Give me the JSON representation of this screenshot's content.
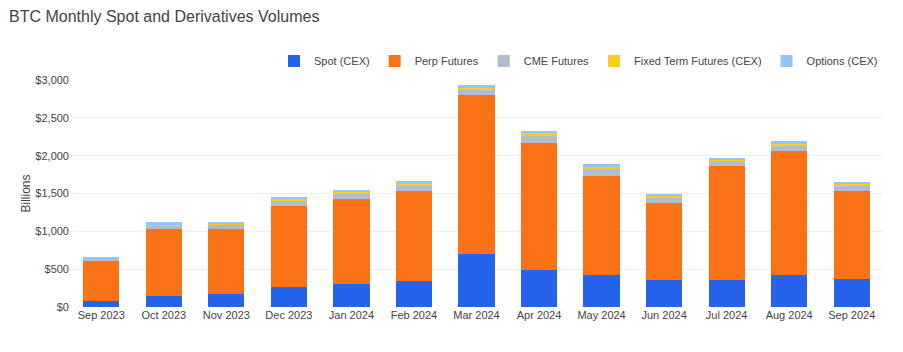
{
  "chart_data": {
    "type": "bar",
    "stacked": true,
    "title": "BTC Monthly Spot and Derivatives Volumes",
    "ylabel": "Billions",
    "categories": [
      "Sep 2023",
      "Oct 2023",
      "Nov 2023",
      "Dec 2023",
      "Jan 2024",
      "Feb 2024",
      "Mar 2024",
      "Apr 2024",
      "May 2024",
      "Jun 2024",
      "Jul 2024",
      "Aug 2024",
      "Sep 2024"
    ],
    "series": [
      {
        "name": "Spot (CEX)",
        "color": "#2563eb",
        "values": [
          75,
          150,
          175,
          260,
          310,
          340,
          700,
          490,
          420,
          360,
          360,
          420,
          375
        ]
      },
      {
        "name": "Perp Futures",
        "color": "#f97316",
        "values": [
          530,
          880,
          860,
          1080,
          1120,
          1190,
          2100,
          1680,
          1310,
          1020,
          1500,
          1640,
          1160
        ]
      },
      {
        "name": "CME Futures",
        "color": "#b0bdd0",
        "values": [
          30,
          50,
          50,
          70,
          70,
          75,
          75,
          100,
          100,
          70,
          70,
          75,
          75
        ]
      },
      {
        "name": "Fixed Term Futures (CEX)",
        "color": "#facc15",
        "values": [
          8,
          12,
          12,
          18,
          18,
          25,
          25,
          25,
          25,
          18,
          18,
          25,
          18
        ]
      },
      {
        "name": "Options (CEX)",
        "color": "#93c5fd",
        "values": [
          17,
          25,
          25,
          30,
          30,
          35,
          35,
          35,
          30,
          25,
          25,
          30,
          25
        ]
      }
    ],
    "ylim": [
      0,
      3000
    ],
    "yticks": [
      {
        "value": 0,
        "label": "$0"
      },
      {
        "value": 500,
        "label": "$500"
      },
      {
        "value": 1000,
        "label": "$1,000"
      },
      {
        "value": 1500,
        "label": "$1,500"
      },
      {
        "value": 2000,
        "label": "$2,000"
      },
      {
        "value": 2500,
        "label": "$2,500"
      },
      {
        "value": 3000,
        "label": "$3,000"
      }
    ],
    "grid": true,
    "legend": "upper right"
  }
}
